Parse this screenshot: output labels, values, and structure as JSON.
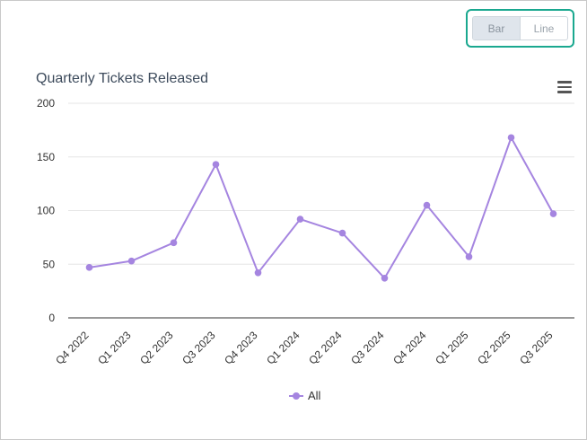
{
  "toggle": {
    "bar_label": "Bar",
    "line_label": "Line",
    "active": "Bar"
  },
  "menu_icon": "hamburger-menu-icon",
  "colors": {
    "series": "#a585e0",
    "toggle_border": "#1aa88f",
    "grid": "#e6e6e6",
    "axis": "#333333"
  },
  "chart_data": {
    "type": "line",
    "title": "Quarterly Tickets Released",
    "xlabel": "",
    "ylabel": "",
    "categories": [
      "Q4 2022",
      "Q1 2023",
      "Q2 2023",
      "Q3 2023",
      "Q4 2023",
      "Q1 2024",
      "Q2 2024",
      "Q3 2024",
      "Q4 2024",
      "Q1 2025",
      "Q2 2025",
      "Q3 2025"
    ],
    "series": [
      {
        "name": "All",
        "values": [
          47,
          53,
          70,
          143,
          42,
          92,
          79,
          37,
          105,
          57,
          168,
          97
        ]
      }
    ],
    "ylim": [
      0,
      200
    ],
    "yticks": [
      0,
      50,
      100,
      150,
      200
    ],
    "grid": true,
    "legend": "bottom-center"
  }
}
